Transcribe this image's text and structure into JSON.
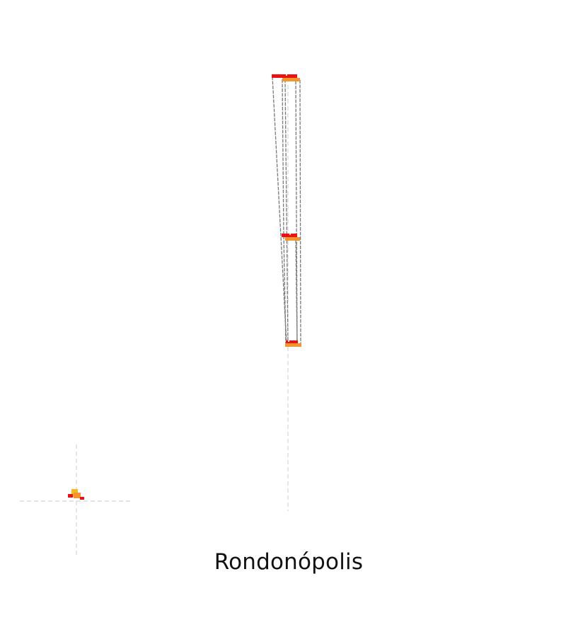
{
  "map": {
    "title": "Rondonópolis"
  },
  "colors": {
    "background": "#ffffff",
    "crosshair": "#d4d4d4",
    "connector": "#7a7a7a",
    "shape_primary": "#ee1111",
    "shape_secondary": "#f2962c",
    "shape_highlight": "#f5b81e",
    "title_text": "#111111"
  }
}
